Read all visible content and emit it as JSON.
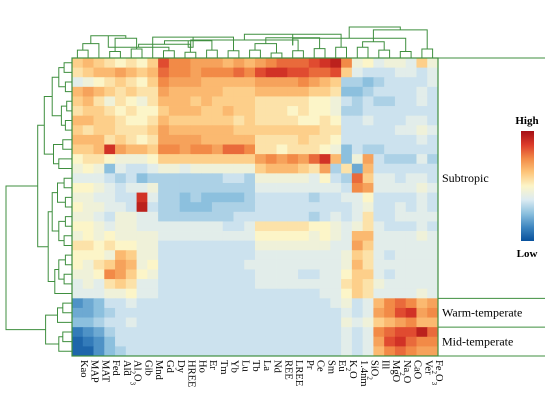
{
  "chart_data": {
    "type": "heatmap",
    "title": "",
    "xlabel": "",
    "ylabel": "",
    "columns": [
      "Kao",
      "MAP",
      "MAT",
      "Fed",
      "Ald",
      "Al2O3",
      "Gib",
      "Mnd",
      "Gd",
      "Dy",
      "HREE",
      "Ho",
      "Er",
      "Tm",
      "Yb",
      "Lu",
      "Tb",
      "La",
      "Nd",
      "REE",
      "LREE",
      "Pr",
      "Ce",
      "Sm",
      "Eu",
      "K2O",
      "1.4nm",
      "SiO2",
      "Ill",
      "MgO",
      "Na2O",
      "CaO",
      "Ver",
      "Fe2O3"
    ],
    "column_labels": [
      {
        "base": "Kao"
      },
      {
        "base": "MAP"
      },
      {
        "base": "MAT"
      },
      {
        "base": "Fed"
      },
      {
        "base": "Ald"
      },
      {
        "base": "Al",
        "sub": "2",
        "rest": "O",
        "sub2": "3"
      },
      {
        "base": "Gib"
      },
      {
        "base": "Mnd"
      },
      {
        "base": "Gd"
      },
      {
        "base": "Dy"
      },
      {
        "base": "HREE"
      },
      {
        "base": "Ho"
      },
      {
        "base": "Er"
      },
      {
        "base": "Tm"
      },
      {
        "base": "Yb"
      },
      {
        "base": "Lu"
      },
      {
        "base": "Tb"
      },
      {
        "base": "La"
      },
      {
        "base": "Nd"
      },
      {
        "base": "REE"
      },
      {
        "base": "LREE"
      },
      {
        "base": "Pr"
      },
      {
        "base": "Ce"
      },
      {
        "base": "Sm"
      },
      {
        "base": "Eu"
      },
      {
        "base": "K",
        "sub": "2",
        "rest": "O"
      },
      {
        "base": "1.4nm"
      },
      {
        "base": "SiO",
        "sub": "2"
      },
      {
        "base": "Ill"
      },
      {
        "base": "MgO"
      },
      {
        "base": "Na",
        "sub": "2",
        "rest": "O"
      },
      {
        "base": "CaO"
      },
      {
        "base": "Ver"
      },
      {
        "base": "Fe",
        "sub": "2",
        "rest": "O",
        "sub2": "3"
      }
    ],
    "row_count": 31,
    "groups": [
      {
        "name": "Subtropic",
        "rows": [
          0,
          24
        ]
      },
      {
        "name": "Warm-temperate",
        "rows": [
          25,
          27
        ]
      },
      {
        "name": "Mid-temperate",
        "rows": [
          28,
          30
        ]
      }
    ],
    "scale": {
      "min": -1,
      "max": 1,
      "high_label": "High",
      "low_label": "Low"
    },
    "colorscale": [
      "#08519c",
      "#3e86c0",
      "#8cc0de",
      "#dcebf2",
      "#fcf5c8",
      "#fdc57a",
      "#f28a47",
      "#dc3b2a",
      "#a50f15"
    ],
    "line_color": "#3f8f3f",
    "values": [
      [
        0.2,
        0.3,
        0.2,
        0.1,
        0.0,
        0.1,
        0.0,
        0.2,
        0.7,
        0.5,
        0.5,
        0.4,
        0.4,
        0.4,
        0.3,
        0.4,
        0.3,
        0.4,
        0.5,
        0.6,
        0.6,
        0.6,
        0.7,
        0.8,
        0.9,
        0.5,
        -0.1,
        0.0,
        -0.2,
        -0.1,
        -0.1,
        -0.2,
        0.2,
        -0.1
      ],
      [
        0.1,
        0.2,
        0.3,
        0.3,
        0.4,
        0.3,
        0.2,
        0.3,
        0.6,
        0.5,
        0.5,
        0.4,
        0.5,
        0.5,
        0.5,
        0.6,
        0.5,
        0.7,
        0.8,
        0.8,
        0.7,
        0.7,
        0.6,
        0.6,
        0.7,
        0.2,
        -0.2,
        -0.3,
        -0.3,
        -0.3,
        -0.2,
        -0.2,
        -0.3,
        -0.2
      ],
      [
        -0.2,
        -0.1,
        0.0,
        0.1,
        0.2,
        0.1,
        0.0,
        0.2,
        0.5,
        0.4,
        0.4,
        0.4,
        0.3,
        0.3,
        0.3,
        0.3,
        0.3,
        0.4,
        0.4,
        0.4,
        0.4,
        0.5,
        0.4,
        0.3,
        0.2,
        -0.4,
        -0.4,
        -0.5,
        -0.4,
        -0.3,
        -0.3,
        -0.3,
        -0.3,
        -0.2
      ],
      [
        0.3,
        0.4,
        0.3,
        0.2,
        0.1,
        0.2,
        0.1,
        0.1,
        0.4,
        0.3,
        0.3,
        0.3,
        0.3,
        0.3,
        0.2,
        0.2,
        0.2,
        0.3,
        0.3,
        0.3,
        0.3,
        0.3,
        0.2,
        0.2,
        0.1,
        -0.5,
        -0.5,
        -0.4,
        -0.3,
        -0.3,
        -0.3,
        -0.3,
        -0.2,
        -0.3
      ],
      [
        0.2,
        0.3,
        0.1,
        -0.1,
        0.1,
        0.0,
        -0.1,
        0.1,
        0.3,
        0.3,
        0.3,
        0.2,
        0.3,
        0.2,
        0.2,
        0.2,
        0.2,
        0.1,
        0.1,
        0.1,
        0.1,
        0.1,
        0.0,
        0.0,
        -0.1,
        -0.3,
        -0.4,
        -0.3,
        -0.4,
        -0.4,
        -0.3,
        -0.3,
        -0.2,
        -0.3
      ],
      [
        0.1,
        0.2,
        0.2,
        0.1,
        0.0,
        0.1,
        0.0,
        0.0,
        0.2,
        0.3,
        0.3,
        0.3,
        0.2,
        0.2,
        0.3,
        0.2,
        0.2,
        0.1,
        0.1,
        0.1,
        0.0,
        0.1,
        0.0,
        0.0,
        -0.1,
        -0.4,
        -0.4,
        -0.3,
        -0.3,
        -0.3,
        -0.3,
        -0.3,
        -0.3,
        -0.3
      ],
      [
        0.3,
        0.3,
        0.2,
        0.2,
        0.1,
        0.0,
        0.0,
        0.1,
        0.3,
        0.2,
        0.2,
        0.2,
        0.2,
        0.2,
        0.2,
        0.1,
        0.2,
        0.1,
        0.1,
        0.1,
        0.1,
        0.0,
        0.0,
        0.1,
        0.0,
        -0.3,
        -0.3,
        -0.2,
        -0.3,
        -0.3,
        -0.3,
        -0.2,
        -0.2,
        -0.3
      ],
      [
        0.2,
        0.1,
        0.2,
        0.2,
        0.1,
        0.1,
        0.1,
        0.2,
        0.4,
        0.3,
        0.3,
        0.3,
        0.3,
        0.3,
        0.3,
        0.2,
        0.2,
        0.2,
        0.2,
        0.2,
        0.2,
        0.2,
        0.2,
        0.1,
        0.1,
        -0.3,
        -0.3,
        -0.3,
        -0.3,
        -0.3,
        -0.2,
        -0.2,
        -0.1,
        -0.2
      ],
      [
        0.3,
        0.3,
        0.3,
        0.1,
        0.2,
        0.1,
        0.0,
        0.1,
        0.4,
        0.4,
        0.4,
        0.4,
        0.3,
        0.3,
        0.3,
        0.3,
        0.3,
        0.1,
        0.1,
        0.1,
        0.1,
        0.2,
        0.1,
        0.1,
        0.0,
        -0.3,
        -0.3,
        -0.3,
        -0.3,
        -0.3,
        -0.3,
        -0.3,
        -0.2,
        -0.3
      ],
      [
        0.2,
        0.2,
        0.3,
        0.8,
        0.4,
        0.3,
        0.3,
        0.2,
        0.5,
        0.5,
        0.4,
        0.5,
        0.5,
        0.4,
        0.6,
        0.6,
        0.5,
        0.1,
        0.1,
        0.0,
        0.1,
        0.1,
        0.1,
        0.0,
        -0.1,
        -0.5,
        -0.3,
        -0.4,
        -0.4,
        -0.3,
        -0.3,
        -0.3,
        -0.3,
        -0.3
      ],
      [
        0.0,
        0.1,
        0.1,
        0.0,
        -0.1,
        -0.1,
        -0.1,
        0.0,
        0.2,
        0.2,
        0.2,
        0.2,
        0.2,
        0.2,
        0.2,
        0.2,
        0.2,
        0.4,
        0.5,
        0.4,
        0.5,
        0.4,
        0.6,
        0.8,
        0.3,
        -0.5,
        -0.1,
        0.4,
        -0.3,
        -0.4,
        -0.4,
        -0.4,
        -0.2,
        -0.4
      ],
      [
        -0.1,
        0.0,
        -0.1,
        -0.5,
        -0.2,
        -0.3,
        -0.3,
        -0.2,
        -0.1,
        -0.1,
        -0.2,
        -0.1,
        -0.1,
        -0.1,
        -0.1,
        -0.1,
        -0.1,
        0.2,
        0.3,
        0.3,
        0.3,
        0.2,
        0.1,
        0.4,
        -0.4,
        0.1,
        -0.6,
        0.3,
        -0.3,
        -0.3,
        -0.3,
        -0.3,
        -0.3,
        -0.3
      ],
      [
        -0.2,
        -0.2,
        -0.2,
        -0.3,
        -0.4,
        -0.3,
        -0.5,
        -0.4,
        -0.4,
        -0.4,
        -0.4,
        -0.4,
        -0.4,
        -0.4,
        -0.3,
        -0.3,
        -0.4,
        -0.1,
        -0.1,
        -0.1,
        -0.1,
        -0.1,
        -0.2,
        0.0,
        -0.3,
        -0.4,
        0.6,
        0.2,
        -0.2,
        -0.2,
        -0.3,
        -0.2,
        -0.2,
        -0.3
      ],
      [
        0.0,
        0.0,
        -0.1,
        -0.2,
        -0.3,
        -0.2,
        -0.2,
        -0.1,
        -0.4,
        -0.4,
        -0.4,
        -0.4,
        -0.4,
        -0.4,
        -0.4,
        -0.4,
        -0.4,
        -0.2,
        -0.2,
        -0.2,
        -0.2,
        -0.2,
        -0.2,
        -0.2,
        -0.2,
        -0.3,
        0.5,
        0.4,
        -0.2,
        -0.2,
        -0.2,
        -0.2,
        -0.1,
        -0.2
      ],
      [
        -0.1,
        -0.1,
        -0.2,
        -0.2,
        -0.3,
        -0.3,
        0.8,
        -0.2,
        -0.4,
        -0.4,
        -0.5,
        -0.4,
        -0.5,
        -0.5,
        -0.5,
        -0.5,
        -0.4,
        -0.3,
        -0.3,
        -0.3,
        -0.3,
        -0.3,
        -0.4,
        -0.3,
        -0.3,
        -0.2,
        -0.2,
        0.0,
        -0.3,
        -0.3,
        -0.3,
        -0.3,
        -0.2,
        -0.3
      ],
      [
        0.0,
        -0.1,
        -0.1,
        -0.2,
        -0.2,
        -0.3,
        0.9,
        -0.3,
        -0.4,
        -0.4,
        -0.5,
        -0.5,
        -0.5,
        -0.4,
        -0.4,
        -0.4,
        -0.4,
        -0.3,
        -0.3,
        -0.3,
        -0.3,
        -0.3,
        -0.3,
        -0.3,
        -0.3,
        -0.3,
        -0.2,
        -0.1,
        -0.3,
        -0.3,
        -0.2,
        -0.3,
        -0.2,
        -0.3
      ],
      [
        -0.1,
        -0.1,
        -0.2,
        -0.3,
        -0.1,
        -0.1,
        -0.2,
        -0.2,
        -0.4,
        -0.4,
        -0.4,
        -0.4,
        -0.4,
        -0.4,
        -0.4,
        -0.3,
        -0.3,
        -0.3,
        -0.3,
        -0.3,
        -0.3,
        -0.3,
        -0.4,
        -0.3,
        -0.2,
        -0.3,
        -0.2,
        0.1,
        -0.3,
        -0.3,
        -0.2,
        -0.2,
        -0.2,
        -0.2
      ],
      [
        0.0,
        0.0,
        -0.1,
        -0.2,
        -0.1,
        -0.1,
        -0.2,
        -0.2,
        -0.2,
        -0.2,
        -0.2,
        -0.2,
        -0.2,
        -0.2,
        -0.3,
        -0.3,
        -0.2,
        0.1,
        0.1,
        0.1,
        0.1,
        0.1,
        0.0,
        0.0,
        -0.1,
        -0.2,
        -0.1,
        0.1,
        -0.2,
        -0.3,
        -0.3,
        -0.3,
        -0.2,
        -0.3
      ],
      [
        -0.1,
        0.0,
        -0.1,
        0.0,
        -0.1,
        -0.1,
        -0.1,
        -0.1,
        -0.2,
        -0.2,
        -0.2,
        -0.2,
        -0.2,
        -0.2,
        -0.2,
        -0.2,
        -0.2,
        0.0,
        0.0,
        0.0,
        0.0,
        0.0,
        -0.1,
        0.0,
        -0.1,
        -0.2,
        0.3,
        0.3,
        -0.2,
        -0.2,
        -0.2,
        -0.2,
        -0.1,
        -0.2
      ],
      [
        0.1,
        0.1,
        0.0,
        0.1,
        0.0,
        0.0,
        -0.1,
        -0.1,
        -0.3,
        -0.3,
        -0.3,
        -0.3,
        -0.3,
        -0.3,
        -0.3,
        -0.3,
        -0.3,
        -0.1,
        -0.1,
        -0.1,
        -0.1,
        -0.1,
        -0.1,
        -0.1,
        -0.2,
        -0.2,
        0.4,
        0.2,
        -0.2,
        -0.2,
        -0.2,
        -0.2,
        -0.2,
        -0.2
      ],
      [
        0.0,
        0.0,
        0.0,
        -0.1,
        0.3,
        0.2,
        -0.1,
        -0.1,
        -0.3,
        -0.3,
        -0.3,
        -0.3,
        -0.3,
        -0.3,
        -0.3,
        -0.3,
        -0.3,
        -0.2,
        -0.2,
        -0.2,
        -0.2,
        -0.2,
        -0.2,
        -0.2,
        -0.2,
        -0.1,
        0.2,
        0.1,
        -0.2,
        -0.3,
        -0.2,
        -0.2,
        -0.2,
        -0.2
      ],
      [
        0.0,
        -0.1,
        0.1,
        0.2,
        0.4,
        0.3,
        -0.1,
        0.0,
        -0.3,
        -0.3,
        -0.3,
        -0.3,
        -0.3,
        -0.3,
        -0.3,
        -0.3,
        -0.2,
        -0.2,
        -0.2,
        -0.2,
        -0.2,
        -0.2,
        -0.2,
        -0.2,
        -0.2,
        -0.1,
        0.3,
        0.1,
        -0.2,
        -0.2,
        -0.2,
        -0.2,
        -0.2,
        -0.2
      ],
      [
        -0.1,
        -0.1,
        0.0,
        0.5,
        0.4,
        0.2,
        0.0,
        -0.1,
        -0.3,
        -0.3,
        -0.3,
        -0.3,
        -0.3,
        -0.3,
        -0.3,
        -0.3,
        -0.3,
        -0.2,
        -0.2,
        -0.2,
        -0.2,
        -0.3,
        -0.3,
        -0.2,
        -0.2,
        0.0,
        0.2,
        0.2,
        -0.2,
        -0.3,
        -0.2,
        -0.2,
        -0.2,
        -0.2
      ],
      [
        -0.2,
        -0.1,
        -0.2,
        0.1,
        0.2,
        0.1,
        -0.2,
        -0.2,
        -0.3,
        -0.3,
        -0.3,
        -0.3,
        -0.3,
        -0.3,
        -0.3,
        -0.3,
        -0.3,
        -0.2,
        -0.2,
        -0.2,
        -0.2,
        -0.2,
        -0.2,
        -0.2,
        -0.2,
        0.1,
        0.2,
        0.1,
        -0.1,
        -0.2,
        -0.2,
        -0.2,
        -0.2,
        -0.2
      ],
      [
        -0.2,
        -0.2,
        -0.2,
        -0.1,
        -0.1,
        0.0,
        -0.2,
        -0.2,
        -0.3,
        -0.3,
        -0.3,
        -0.3,
        -0.3,
        -0.3,
        -0.3,
        -0.3,
        -0.3,
        -0.3,
        -0.3,
        -0.3,
        -0.3,
        -0.3,
        -0.3,
        -0.2,
        -0.2,
        0.0,
        0.2,
        0.1,
        -0.2,
        -0.2,
        -0.2,
        -0.2,
        -0.1,
        -0.2
      ],
      [
        -0.7,
        -0.6,
        -0.5,
        -0.3,
        -0.3,
        -0.2,
        -0.3,
        -0.3,
        -0.3,
        -0.3,
        -0.3,
        -0.3,
        -0.3,
        -0.3,
        -0.3,
        -0.3,
        -0.3,
        -0.3,
        -0.3,
        -0.3,
        -0.3,
        -0.3,
        -0.3,
        -0.3,
        -0.2,
        -0.1,
        -0.3,
        -0.2,
        0.3,
        0.5,
        0.6,
        0.5,
        0.3,
        0.4
      ],
      [
        -0.6,
        -0.6,
        -0.5,
        -0.4,
        -0.3,
        -0.3,
        -0.3,
        -0.3,
        -0.3,
        -0.3,
        -0.3,
        -0.3,
        -0.3,
        -0.3,
        -0.3,
        -0.3,
        -0.3,
        -0.3,
        -0.3,
        -0.3,
        -0.3,
        -0.3,
        -0.3,
        -0.3,
        -0.3,
        -0.2,
        -0.3,
        -0.2,
        0.4,
        0.5,
        0.7,
        0.8,
        0.4,
        0.5
      ],
      [
        -0.5,
        -0.5,
        -0.4,
        -0.3,
        -0.3,
        -0.2,
        -0.3,
        -0.3,
        -0.3,
        -0.3,
        -0.3,
        -0.3,
        -0.3,
        -0.3,
        -0.3,
        -0.3,
        -0.3,
        -0.3,
        -0.3,
        -0.3,
        -0.3,
        -0.3,
        -0.3,
        -0.3,
        -0.3,
        -0.1,
        -0.2,
        -0.1,
        0.2,
        0.3,
        0.4,
        0.5,
        0.3,
        0.3
      ],
      [
        -0.8,
        -0.7,
        -0.6,
        -0.4,
        -0.3,
        -0.3,
        -0.3,
        -0.3,
        -0.3,
        -0.3,
        -0.3,
        -0.3,
        -0.3,
        -0.3,
        -0.3,
        -0.3,
        -0.3,
        -0.3,
        -0.3,
        -0.3,
        -0.3,
        -0.3,
        -0.3,
        -0.3,
        -0.3,
        -0.2,
        -0.3,
        -0.2,
        0.5,
        0.6,
        0.7,
        0.7,
        0.9,
        0.6
      ],
      [
        -0.9,
        -0.8,
        -0.7,
        -0.5,
        -0.3,
        -0.3,
        -0.3,
        -0.3,
        -0.3,
        -0.3,
        -0.3,
        -0.3,
        -0.3,
        -0.3,
        -0.3,
        -0.3,
        -0.3,
        -0.3,
        -0.3,
        -0.3,
        -0.3,
        -0.3,
        -0.3,
        -0.3,
        -0.3,
        -0.2,
        -0.3,
        -0.2,
        0.4,
        0.7,
        0.8,
        0.6,
        0.5,
        0.5
      ],
      [
        -0.9,
        -0.9,
        -0.7,
        -0.5,
        -0.4,
        -0.3,
        -0.3,
        -0.3,
        -0.3,
        -0.3,
        -0.3,
        -0.3,
        -0.3,
        -0.3,
        -0.3,
        -0.3,
        -0.3,
        -0.3,
        -0.3,
        -0.3,
        -0.3,
        -0.3,
        -0.3,
        -0.3,
        -0.3,
        -0.2,
        -0.3,
        -0.2,
        0.3,
        0.5,
        0.6,
        0.5,
        0.4,
        0.4
      ]
    ]
  }
}
